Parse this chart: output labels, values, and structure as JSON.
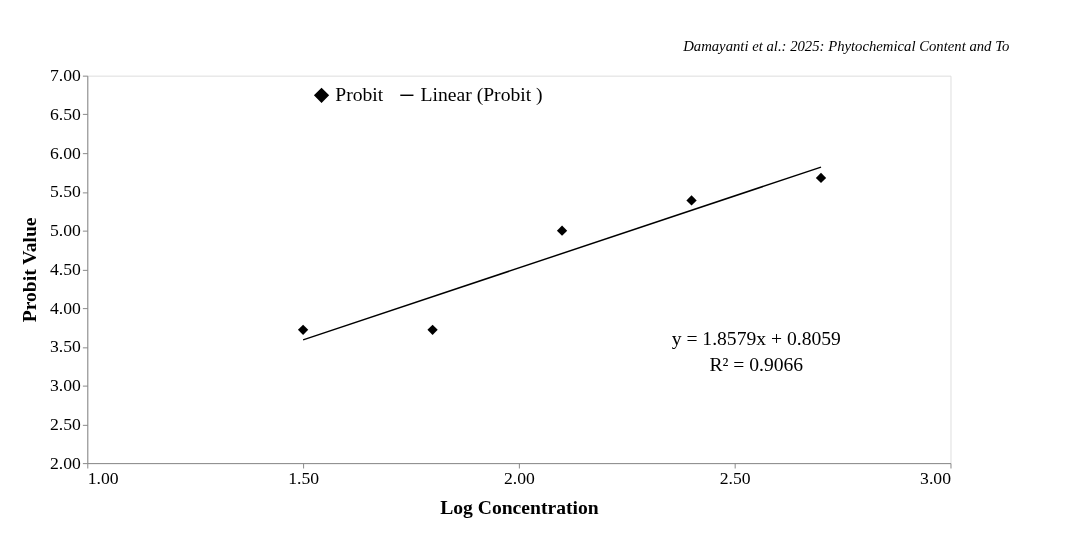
{
  "chart_data": {
    "type": "scatter",
    "xlabel": "Log Concentration",
    "ylabel": "Probit Value",
    "xlim": [
      1.0,
      3.0
    ],
    "xticks": [
      {
        "value": 1,
        "label": "1.00"
      },
      {
        "value": 1.5,
        "label": "1.50"
      },
      {
        "value": 2,
        "label": "2.00"
      },
      {
        "value": 2.5,
        "label": "2.50"
      },
      {
        "value": 3,
        "label": "3.00"
      }
    ],
    "ylim": [
      2.0,
      7.0
    ],
    "yticks": [
      {
        "value": 2,
        "label": "2.00"
      },
      {
        "value": 2.5,
        "label": "2.50"
      },
      {
        "value": 3,
        "label": "3.00"
      },
      {
        "value": 3.5,
        "label": "3.50"
      },
      {
        "value": 4,
        "label": "4.00"
      },
      {
        "value": 4.5,
        "label": "4.50"
      },
      {
        "value": 5,
        "label": "5.00"
      },
      {
        "value": 5.5,
        "label": "5.50"
      },
      {
        "value": 6,
        "label": "6.00"
      },
      {
        "value": 6.5,
        "label": "6.50"
      },
      {
        "value": 7,
        "label": "7.00"
      }
    ],
    "grid": false,
    "legend": "top",
    "annotations": [
      "y = 1.8579x + 0.8059",
      "R² = 0.9066",
      "Damayanti et al.: 2025: Phytochemical Content and To"
    ],
    "series": [
      {
        "name": "Probit",
        "marker": "diamond",
        "color": "#000000",
        "x": [
          1.5,
          1.8,
          2.1,
          2.4,
          2.7
        ],
        "values": [
          3.72,
          3.72,
          5.0,
          5.39,
          5.68
        ]
      },
      {
        "name": "Linear (Probit )",
        "type": "line",
        "marker": "none",
        "color": "#000000",
        "line_style": "solid",
        "x": [
          1.5,
          2.7
        ],
        "values": [
          3.59,
          5.82
        ]
      }
    ]
  }
}
